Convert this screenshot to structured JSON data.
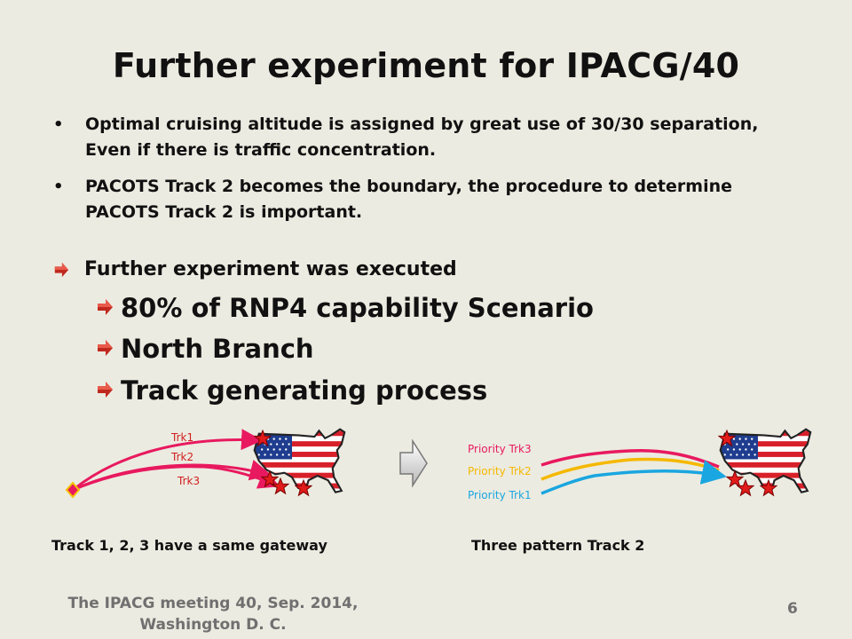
{
  "slide": {
    "title": "Further experiment for IPACG/40",
    "bullets": [
      "Optimal cruising altitude is assigned by great use of 30/30 separation, Even if there is traffic concentration.",
      "PACOTS Track 2 becomes the boundary, the procedure to determine PACOTS Track 2 is important."
    ],
    "main_point": "Further experiment was executed",
    "sub_points": [
      "80% of RNP4 capability Scenario",
      "North Branch",
      "Track generating process"
    ]
  },
  "diagram_left": {
    "labels": [
      "Trk1",
      "Trk2",
      "Trk3"
    ],
    "caption": "Track 1, 2, 3 have a same gateway",
    "colors": {
      "tracks": "#e8195f",
      "labels": "#d02020"
    }
  },
  "diagram_right": {
    "labels": [
      "Priority Trk3",
      "Priority Trk2",
      "Priority Trk1"
    ],
    "caption": "Three pattern Track 2",
    "colors": {
      "trk3": "#e8195f",
      "trk2": "#f5b800",
      "trk1": "#1aa6e0"
    }
  },
  "footer": {
    "line1": "The IPACG meeting 40, Sep. 2014,",
    "line2": "Washington D. C.",
    "page_number": "6"
  },
  "icons": {
    "bullet_arrow": "red-arrow-bullet-icon",
    "transition": "gray-right-arrow-icon",
    "map": "usa-flag-map-icon",
    "waypoint": "red-star-icon",
    "gateway": "diamond-gateway-icon"
  }
}
